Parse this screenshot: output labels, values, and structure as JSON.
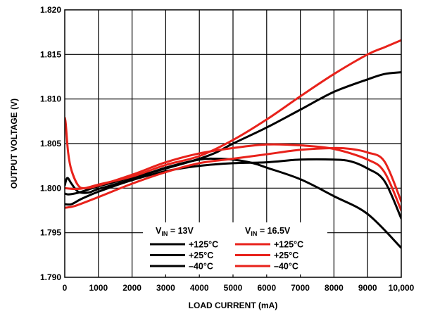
{
  "chart_data": {
    "type": "line",
    "xlabel": "LOAD CURRENT (mA)",
    "ylabel": "OUTPUT VOLTAGE (V)",
    "xlim": [
      0,
      10000
    ],
    "ylim": [
      1.79,
      1.82
    ],
    "x_ticks": [
      "0",
      "1000",
      "2000",
      "3000",
      "4000",
      "5000",
      "6000",
      "7000",
      "8000",
      "9000",
      "10,000"
    ],
    "y_ticks": [
      "1.790",
      "1.795",
      "1.800",
      "1.805",
      "1.810",
      "1.815",
      "1.820"
    ],
    "grid": true,
    "legend": {
      "placement": "bottom-center",
      "groups": [
        {
          "vin": "13",
          "header_prefix": "V",
          "header_sub": "IN",
          "header_suffix": " = 13V",
          "color": "#000000"
        },
        {
          "vin": "16.5",
          "header_prefix": "V",
          "header_sub": "IN",
          "header_suffix": " = 16.5V",
          "color": "#e8221b"
        }
      ],
      "temperatures": [
        "+125°C",
        "+25°C",
        "–40°C"
      ]
    },
    "colors": {
      "vin_13": "#000000",
      "vin_16_5": "#e8221b"
    },
    "series": [
      {
        "group": "13V",
        "temp": "+125°C",
        "color": "#000000",
        "points": [
          [
            0,
            1.7994
          ],
          [
            100,
            1.7993
          ],
          [
            300,
            1.7994
          ],
          [
            500,
            1.7996
          ],
          [
            1000,
            1.8002
          ],
          [
            2000,
            1.8012
          ],
          [
            3000,
            1.8022
          ],
          [
            4000,
            1.8033
          ],
          [
            4500,
            1.804
          ],
          [
            5000,
            1.805
          ],
          [
            6000,
            1.8068
          ],
          [
            7000,
            1.8088
          ],
          [
            8000,
            1.8108
          ],
          [
            9000,
            1.8122
          ],
          [
            9500,
            1.8128
          ],
          [
            10000,
            1.813
          ]
        ]
      },
      {
        "group": "13V",
        "temp": "+25°C",
        "color": "#000000",
        "points": [
          [
            0,
            1.8003
          ],
          [
            50,
            1.801
          ],
          [
            100,
            1.8011
          ],
          [
            200,
            1.8005
          ],
          [
            400,
            1.7996
          ],
          [
            700,
            1.7995
          ],
          [
            1000,
            1.7999
          ],
          [
            2000,
            1.801
          ],
          [
            3000,
            1.8023
          ],
          [
            4000,
            1.8032
          ],
          [
            4500,
            1.8033
          ],
          [
            5000,
            1.8032
          ],
          [
            5600,
            1.8028
          ],
          [
            6000,
            1.8023
          ],
          [
            7000,
            1.801
          ],
          [
            8000,
            1.7991
          ],
          [
            9000,
            1.7971
          ],
          [
            10000,
            1.7933
          ]
        ]
      },
      {
        "group": "13V",
        "temp": "–40°C",
        "color": "#000000",
        "points": [
          [
            0,
            1.7982
          ],
          [
            200,
            1.7982
          ],
          [
            500,
            1.7988
          ],
          [
            1000,
            1.7996
          ],
          [
            2000,
            1.8009
          ],
          [
            3000,
            1.8019
          ],
          [
            4000,
            1.8025
          ],
          [
            5000,
            1.8028
          ],
          [
            6000,
            1.8029
          ],
          [
            7000,
            1.8032
          ],
          [
            8000,
            1.8032
          ],
          [
            8500,
            1.803
          ],
          [
            9000,
            1.8022
          ],
          [
            9500,
            1.8008
          ],
          [
            10000,
            1.7966
          ]
        ]
      },
      {
        "group": "16.5V",
        "temp": "+125°C",
        "color": "#e8221b",
        "points": [
          [
            0,
            1.8
          ],
          [
            300,
            1.7999
          ],
          [
            600,
            1.8
          ],
          [
            1000,
            1.8004
          ],
          [
            2000,
            1.8013
          ],
          [
            3000,
            1.8026
          ],
          [
            4000,
            1.8036
          ],
          [
            5000,
            1.8054
          ],
          [
            6000,
            1.8077
          ],
          [
            7000,
            1.8103
          ],
          [
            8000,
            1.8128
          ],
          [
            9000,
            1.815
          ],
          [
            9500,
            1.8158
          ],
          [
            10000,
            1.8166
          ]
        ]
      },
      {
        "group": "16.5V",
        "temp": "+25°C",
        "color": "#e8221b",
        "points": [
          [
            0,
            1.8079
          ],
          [
            30,
            1.8072
          ],
          [
            100,
            1.804
          ],
          [
            200,
            1.802
          ],
          [
            400,
            1.8003
          ],
          [
            600,
            1.8
          ],
          [
            1000,
            1.8003
          ],
          [
            2000,
            1.8015
          ],
          [
            3000,
            1.8029
          ],
          [
            4000,
            1.8039
          ],
          [
            5000,
            1.8045
          ],
          [
            6000,
            1.8049
          ],
          [
            7000,
            1.8048
          ],
          [
            8000,
            1.8044
          ],
          [
            9000,
            1.8032
          ],
          [
            9500,
            1.8018
          ],
          [
            10000,
            1.7975
          ]
        ]
      },
      {
        "group": "16.5V",
        "temp": "–40°C",
        "color": "#e8221b",
        "points": [
          [
            0,
            1.7978
          ],
          [
            300,
            1.798
          ],
          [
            1000,
            1.799
          ],
          [
            2000,
            1.8005
          ],
          [
            3000,
            1.8018
          ],
          [
            4000,
            1.8028
          ],
          [
            5000,
            1.8033
          ],
          [
            6000,
            1.8038
          ],
          [
            7000,
            1.8043
          ],
          [
            8000,
            1.8045
          ],
          [
            8500,
            1.8044
          ],
          [
            9000,
            1.804
          ],
          [
            9500,
            1.803
          ],
          [
            10000,
            1.7985
          ]
        ]
      }
    ]
  }
}
